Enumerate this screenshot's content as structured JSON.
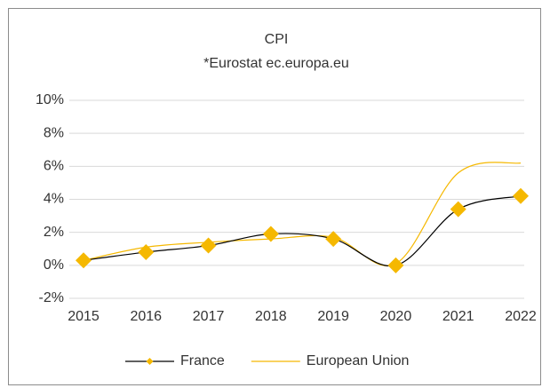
{
  "chart_data": {
    "type": "line",
    "title": "CPI",
    "subtitle": "*Eurostat ec.europa.eu",
    "categories": [
      "2015",
      "2016",
      "2017",
      "2018",
      "2019",
      "2020",
      "2021",
      "2022"
    ],
    "series": [
      {
        "name": "France",
        "color": "#000000",
        "marker_color": "#f5b800",
        "values": [
          0.3,
          0.8,
          1.2,
          1.9,
          1.6,
          0.0,
          3.4,
          4.2
        ]
      },
      {
        "name": "European Union",
        "color": "#f5b800",
        "values": [
          0.3,
          1.1,
          1.4,
          1.6,
          1.7,
          0.1,
          5.6,
          6.2
        ]
      }
    ],
    "ylim": [
      -2,
      10
    ],
    "yticks": [
      {
        "value": -2,
        "label": "-2%"
      },
      {
        "value": 0,
        "label": "0%"
      },
      {
        "value": 2,
        "label": "2%"
      },
      {
        "value": 4,
        "label": "4%"
      },
      {
        "value": 6,
        "label": "6%"
      },
      {
        "value": 8,
        "label": "8%"
      },
      {
        "value": 10,
        "label": "10%"
      }
    ],
    "grid": true,
    "legend": "bottom"
  }
}
